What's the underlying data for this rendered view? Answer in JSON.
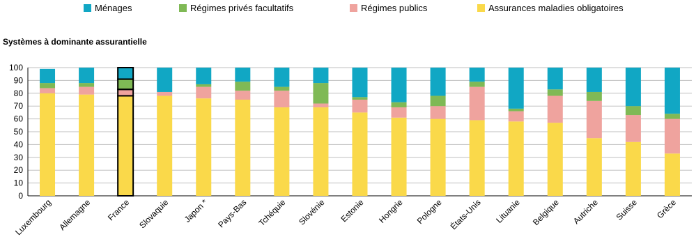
{
  "legend": {
    "menages": "Ménages",
    "prives": "Régimes privés facultatifs",
    "publics": "Régimes publics",
    "obligatoires": "Assurances maladies obligatoires"
  },
  "subtitle": "Systèmes à dominante assurantielle",
  "colors": {
    "menages": "#11A7C4",
    "prives": "#7FB955",
    "publics": "#EFA39E",
    "obligatoires": "#FAD94A",
    "highlight_outline": "#000000"
  },
  "chart_data": {
    "type": "bar",
    "stacked": true,
    "title": "",
    "xlabel": "",
    "ylabel": "",
    "ylim": [
      0,
      100
    ],
    "yticks": [
      0,
      10,
      20,
      30,
      40,
      50,
      60,
      70,
      80,
      90,
      100
    ],
    "gridlines": true,
    "legend_position": "top",
    "highlighted_category": "France",
    "categories": [
      "Luxembourg",
      "Allemagne",
      "France",
      "Slovaquie",
      "Japon *",
      "Pays-Bas",
      "Tchéquie",
      "Slovénie",
      "Estonie",
      "Hongrie",
      "Pologne",
      "États-Unis",
      "Lituanie",
      "Belgique",
      "Autriche",
      "Suisse",
      "Grèce"
    ],
    "series": [
      {
        "name": "Assurances maladies obligatoires",
        "key": "obligatoires",
        "values": [
          80,
          79,
          78,
          78,
          76,
          75,
          69,
          69,
          65,
          61,
          60,
          59,
          58,
          57,
          45,
          42,
          33
        ]
      },
      {
        "name": "Régimes publics",
        "key": "publics",
        "values": [
          4,
          6,
          5,
          3,
          9,
          7,
          13,
          3,
          10,
          8,
          10,
          26,
          8,
          21,
          29,
          21,
          27
        ]
      },
      {
        "name": "Régimes privés facultatifs",
        "key": "prives",
        "values": [
          4,
          3,
          8,
          0,
          2,
          7,
          3,
          16,
          2,
          4,
          8,
          4,
          2,
          5,
          7,
          7,
          4
        ]
      },
      {
        "name": "Ménages",
        "key": "menages",
        "values": [
          11,
          12,
          9,
          19,
          13,
          11,
          15,
          12,
          23,
          27,
          22,
          11,
          32,
          17,
          19,
          30,
          36
        ]
      }
    ]
  }
}
